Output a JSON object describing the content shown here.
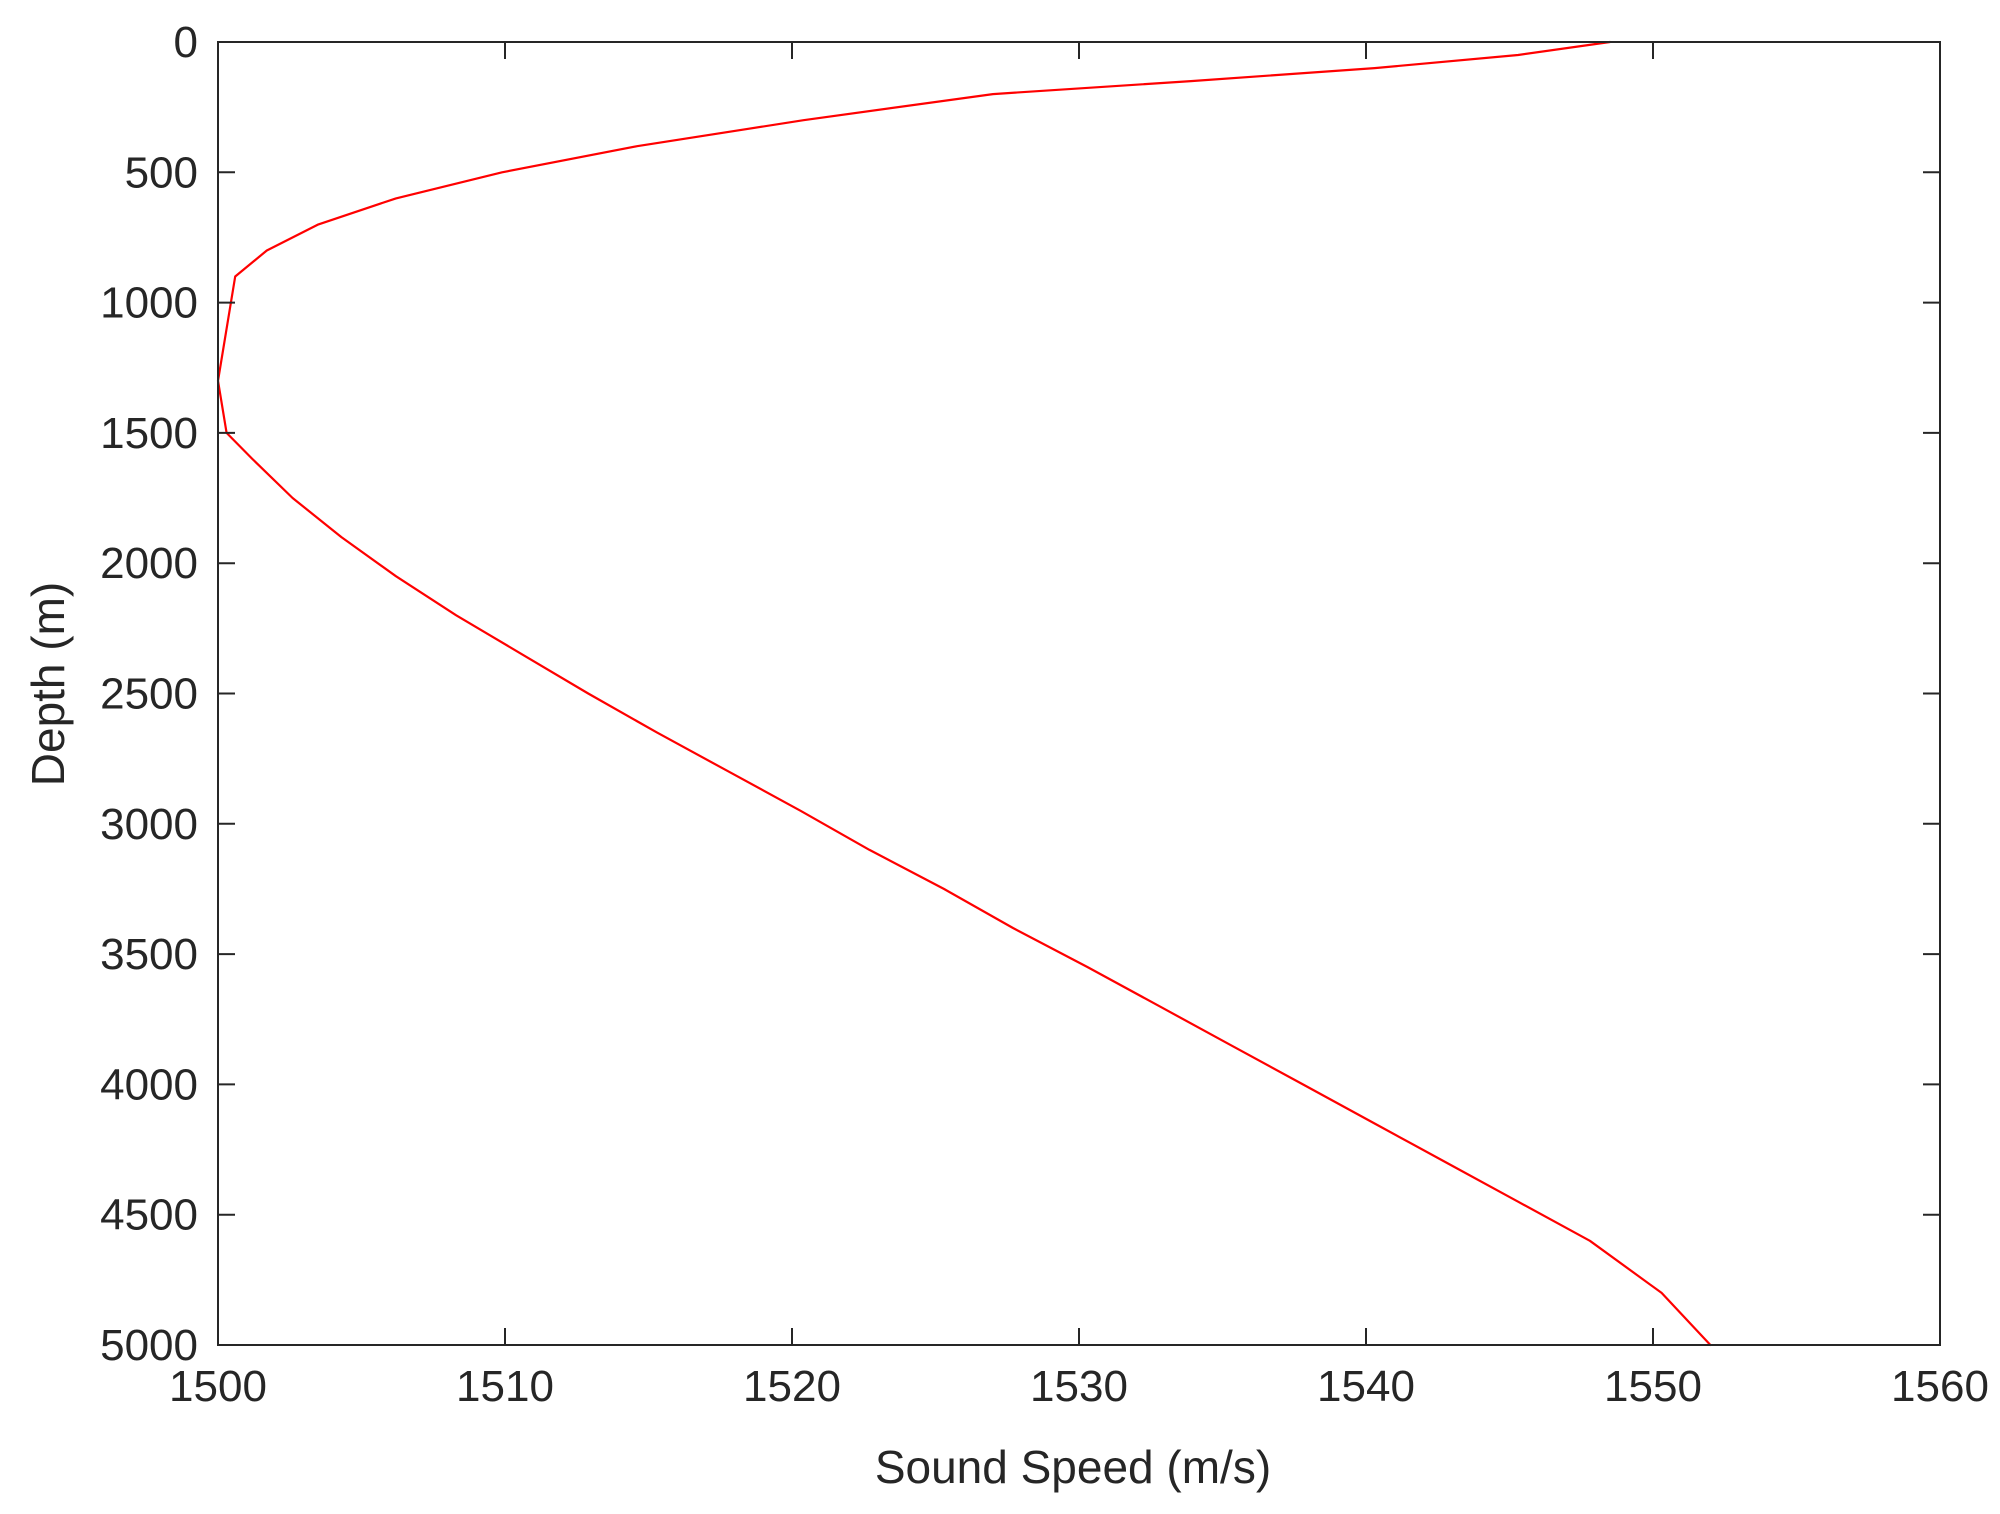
{
  "chart_data": {
    "type": "line",
    "xlabel": "Sound Speed (m/s)",
    "ylabel": "Depth (m)",
    "xlim": [
      1500,
      1560
    ],
    "ylim": [
      0,
      5000
    ],
    "y_reversed": true,
    "x_ticks": [
      "1500",
      "1510",
      "1520",
      "1530",
      "1540",
      "1550",
      "1560"
    ],
    "y_ticks": [
      "0",
      "500",
      "1000",
      "1500",
      "2000",
      "2500",
      "3000",
      "3500",
      "4000",
      "4500",
      "5000"
    ],
    "grid": false,
    "box": true,
    "series": [
      {
        "color": "#ff0000",
        "x": [
          1548.5,
          1545.3,
          1540.3,
          1533.9,
          1527.0,
          1520.4,
          1514.6,
          1509.9,
          1506.2,
          1503.5,
          1501.7,
          1500.6,
          1500.0,
          1500.3,
          1501.2,
          1502.6,
          1504.3,
          1506.2,
          1508.3,
          1510.6,
          1512.9,
          1515.3,
          1517.8,
          1520.3,
          1522.7,
          1525.3,
          1527.7,
          1530.3,
          1532.8,
          1535.3,
          1537.8,
          1540.3,
          1542.8,
          1545.3,
          1547.8,
          1550.3,
          1552.0
        ],
        "y": [
          0,
          50,
          100,
          150,
          200,
          300,
          400,
          500,
          600,
          700,
          800,
          900,
          1300,
          1500,
          1600,
          1750,
          1900,
          2050,
          2200,
          2350,
          2500,
          2650,
          2800,
          2950,
          3100,
          3250,
          3400,
          3550,
          3700,
          3850,
          4000,
          4150,
          4300,
          4450,
          4600,
          4800,
          5000
        ]
      }
    ]
  }
}
